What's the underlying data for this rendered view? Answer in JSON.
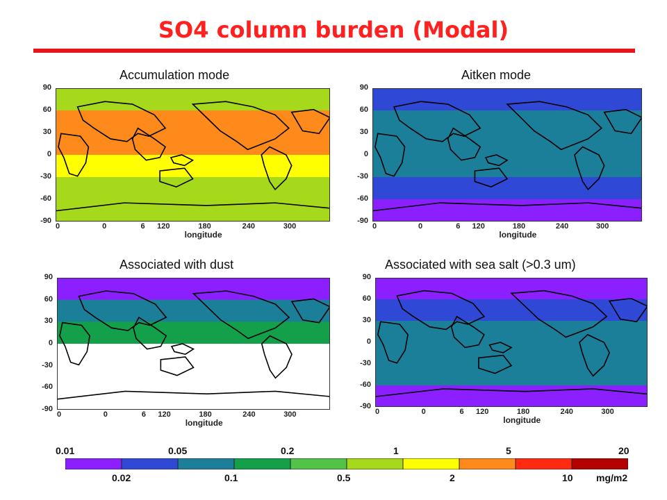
{
  "title": "SO4 column burden (Modal)",
  "chart_data": [
    {
      "type": "heatmap",
      "title": "Accumulation mode",
      "yticks": [
        "90",
        "60",
        "30",
        "0",
        "-30",
        "-60",
        "-90"
      ],
      "xticks": [
        "0",
        "0",
        "6",
        "120",
        "180",
        "240",
        "300"
      ],
      "xlabel": "longitude",
      "bands": [
        {
          "lat": "90 to 60",
          "class": "0.5-1"
        },
        {
          "lat": "60 to 30",
          "class": "2-5"
        },
        {
          "lat": "30 to 0",
          "class": "2-5"
        },
        {
          "lat": "0 to -30",
          "class": "1-2"
        },
        {
          "lat": "-30 to -60",
          "class": "0.5-1"
        },
        {
          "lat": "-60 to -90",
          "class": "0.5-1"
        }
      ]
    },
    {
      "type": "heatmap",
      "title": "Aitken mode",
      "yticks": [
        "90",
        "60",
        "30",
        "0",
        "-30",
        "-60",
        "-90"
      ],
      "xticks": [
        "0",
        "0",
        "6",
        "120",
        "180",
        "240",
        "300"
      ],
      "xlabel": "longitude",
      "bands": [
        {
          "lat": "90 to 60",
          "class": "0.02-0.05"
        },
        {
          "lat": "60 to 30",
          "class": "0.05-0.1"
        },
        {
          "lat": "30 to 0",
          "class": "0.05-0.1"
        },
        {
          "lat": "0 to -30",
          "class": "0.05-0.1"
        },
        {
          "lat": "-30 to -60",
          "class": "0.02-0.05"
        },
        {
          "lat": "-60 to -90",
          "class": "0.01-0.02"
        }
      ]
    },
    {
      "type": "heatmap",
      "title": "Associated with dust",
      "yticks": [
        "90",
        "60",
        "30",
        "0",
        "-30",
        "-60",
        "-90"
      ],
      "xticks": [
        "0",
        "0",
        "6",
        "120",
        "180",
        "240",
        "300"
      ],
      "xlabel": "longitude",
      "bands": [
        {
          "lat": "90 to 60",
          "class": "0.01-0.02"
        },
        {
          "lat": "60 to 30",
          "class": "0.05-0.1"
        },
        {
          "lat": "30 to 0",
          "class": "0.1-0.2"
        },
        {
          "lat": "0 to -30",
          "class": "below 0.01"
        },
        {
          "lat": "-30 to -60",
          "class": "below 0.01"
        },
        {
          "lat": "-60 to -90",
          "class": "below 0.01"
        }
      ]
    },
    {
      "type": "heatmap",
      "title": "Associated with sea salt (>0.3 um)",
      "yticks": [
        "90",
        "60",
        "30",
        "0",
        "-30",
        "-60",
        "-90"
      ],
      "xticks": [
        "0",
        "0",
        "6",
        "120",
        "180",
        "240",
        "300"
      ],
      "xlabel": "longitude",
      "bands": [
        {
          "lat": "90 to 60",
          "class": "0.01-0.02"
        },
        {
          "lat": "60 to 30",
          "class": "0.02-0.05"
        },
        {
          "lat": "30 to 0",
          "class": "0.05-0.1"
        },
        {
          "lat": "0 to -30",
          "class": "0.05-0.1"
        },
        {
          "lat": "-30 to -60",
          "class": "0.05-0.1"
        },
        {
          "lat": "-60 to -90",
          "class": "0.01-0.02"
        }
      ]
    }
  ],
  "colorbar": {
    "top_labels": [
      "0.01",
      "0.05",
      "0.2",
      "1",
      "5",
      "20"
    ],
    "bottom_labels": [
      "0.02",
      "0.1",
      "0.5",
      "2",
      "10"
    ],
    "unit": "mg/m2",
    "colors": [
      "#8b1fff",
      "#2f49d6",
      "#1b7f9a",
      "#14a04a",
      "#52c248",
      "#a6d81c",
      "#ffff00",
      "#ff8a1c",
      "#ff2a10",
      "#b30000"
    ]
  }
}
